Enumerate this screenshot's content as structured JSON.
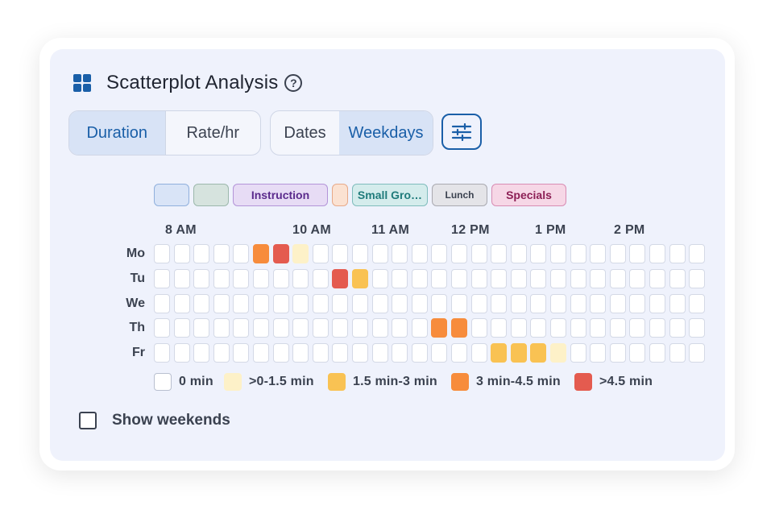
{
  "header": {
    "title": "Scatterplot Analysis",
    "help_symbol": "?"
  },
  "metric_toggle": {
    "options": [
      {
        "label": "Duration",
        "active": true
      },
      {
        "label": "Rate/hr",
        "active": false
      }
    ]
  },
  "view_toggle": {
    "options": [
      {
        "label": "Dates",
        "active": false
      },
      {
        "label": "Weekdays",
        "active": true
      }
    ]
  },
  "filter_button": {
    "icon": "sliders-icon"
  },
  "activity_chips": [
    {
      "label": "",
      "bg": "#d9e4f7",
      "border": "#90b0dd",
      "color": "#1a5fa8"
    },
    {
      "label": "",
      "bg": "#d6e3de",
      "border": "#9cb8ac",
      "color": "#2c6b4f"
    },
    {
      "label": "Instruction",
      "bg": "#e7dcf5",
      "border": "#b394d8",
      "color": "#5a2a8c"
    },
    {
      "label": "",
      "bg": "#fbe2d2",
      "border": "#e7a988",
      "color": "#9c4a1c"
    },
    {
      "label": "Small Gro…",
      "bg": "#d4ecec",
      "border": "#7fbcbc",
      "color": "#1f7b7b"
    },
    {
      "label": "Lunch",
      "bg": "#e4e4e8",
      "border": "#a9a9b0",
      "color": "#3b4250"
    },
    {
      "label": "Specials",
      "bg": "#f6d7e6",
      "border": "#d88cb3",
      "color": "#8c1f55"
    }
  ],
  "time_labels": [
    "8 AM",
    "10 AM",
    "11 AM",
    "12 PM",
    "1 PM",
    "2 PM"
  ],
  "days": [
    "Mo",
    "Tu",
    "We",
    "Th",
    "Fr"
  ],
  "heat_levels": [
    {
      "label": "0 min",
      "color": "#ffffff"
    },
    {
      "label": ">0-1.5 min",
      "color": "#fdf1c8"
    },
    {
      "label": "1.5 min-3 min",
      "color": "#f9c253"
    },
    {
      "label": "3 min-4.5 min",
      "color": "#f78c3c"
    },
    {
      "label": ">4.5 min",
      "color": "#e45b4f"
    }
  ],
  "grid": {
    "columns": 28,
    "rows": [
      [
        0,
        0,
        0,
        0,
        0,
        3,
        4,
        1,
        0,
        0,
        0,
        0,
        0,
        0,
        0,
        0,
        0,
        0,
        0,
        0,
        0,
        0,
        0,
        0,
        0,
        0,
        0,
        0
      ],
      [
        0,
        0,
        0,
        0,
        0,
        0,
        0,
        0,
        0,
        4,
        2,
        0,
        0,
        0,
        0,
        0,
        0,
        0,
        0,
        0,
        0,
        0,
        0,
        0,
        0,
        0,
        0,
        0
      ],
      [
        0,
        0,
        0,
        0,
        0,
        0,
        0,
        0,
        0,
        0,
        0,
        0,
        0,
        0,
        0,
        0,
        0,
        0,
        0,
        0,
        0,
        0,
        0,
        0,
        0,
        0,
        0,
        0
      ],
      [
        0,
        0,
        0,
        0,
        0,
        0,
        0,
        0,
        0,
        0,
        0,
        0,
        0,
        0,
        3,
        3,
        0,
        0,
        0,
        0,
        0,
        0,
        0,
        0,
        0,
        0,
        0,
        0
      ],
      [
        0,
        0,
        0,
        0,
        0,
        0,
        0,
        0,
        0,
        0,
        0,
        0,
        0,
        0,
        0,
        0,
        0,
        2,
        2,
        2,
        1,
        0,
        0,
        0,
        0,
        0,
        0,
        0
      ]
    ]
  },
  "weekends": {
    "label": "Show weekends",
    "checked": false
  }
}
